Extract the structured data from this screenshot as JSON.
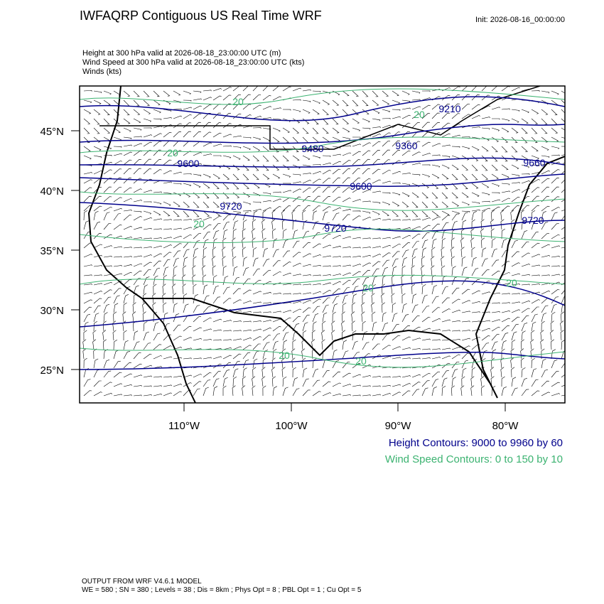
{
  "header": {
    "title": "IWFAQRP Contiguous US Real Time WRF",
    "init": "Init: 2026-08-16_00:00:00",
    "fields": [
      "Height at 300 hPa valid at 2026-08-18_23:00:00 UTC   (m)",
      "Wind Speed at 300 hPa valid at 2026-08-18_23:00:00 UTC   (kts)",
      "Winds   (kts)"
    ]
  },
  "map": {
    "lat_labels": [
      "45°N",
      "40°N",
      "35°N",
      "30°N",
      "25°N"
    ],
    "lon_labels": [
      "110°W",
      "100°W",
      "90°W",
      "80°W"
    ],
    "height_contour_labels": [
      "9210",
      "9360",
      "9480",
      "9600",
      "9600",
      "9660",
      "9720",
      "9720",
      "9720"
    ],
    "speed_contour_labels": [
      "20",
      "20",
      "20",
      "20",
      "20",
      "20",
      "20",
      "20"
    ]
  },
  "legend": {
    "height": "Height Contours: 9000 to 9960 by 60",
    "speed": "Wind Speed Contours: 0 to 150 by 10"
  },
  "footer": [
    "OUTPUT FROM WRF V4.6.1 MODEL",
    "WE = 580 ; SN = 380 ; Levels = 38 ; Dis = 8km ; Phys Opt = 8 ; PBL Opt = 1 ; Cu Opt = 5"
  ]
}
